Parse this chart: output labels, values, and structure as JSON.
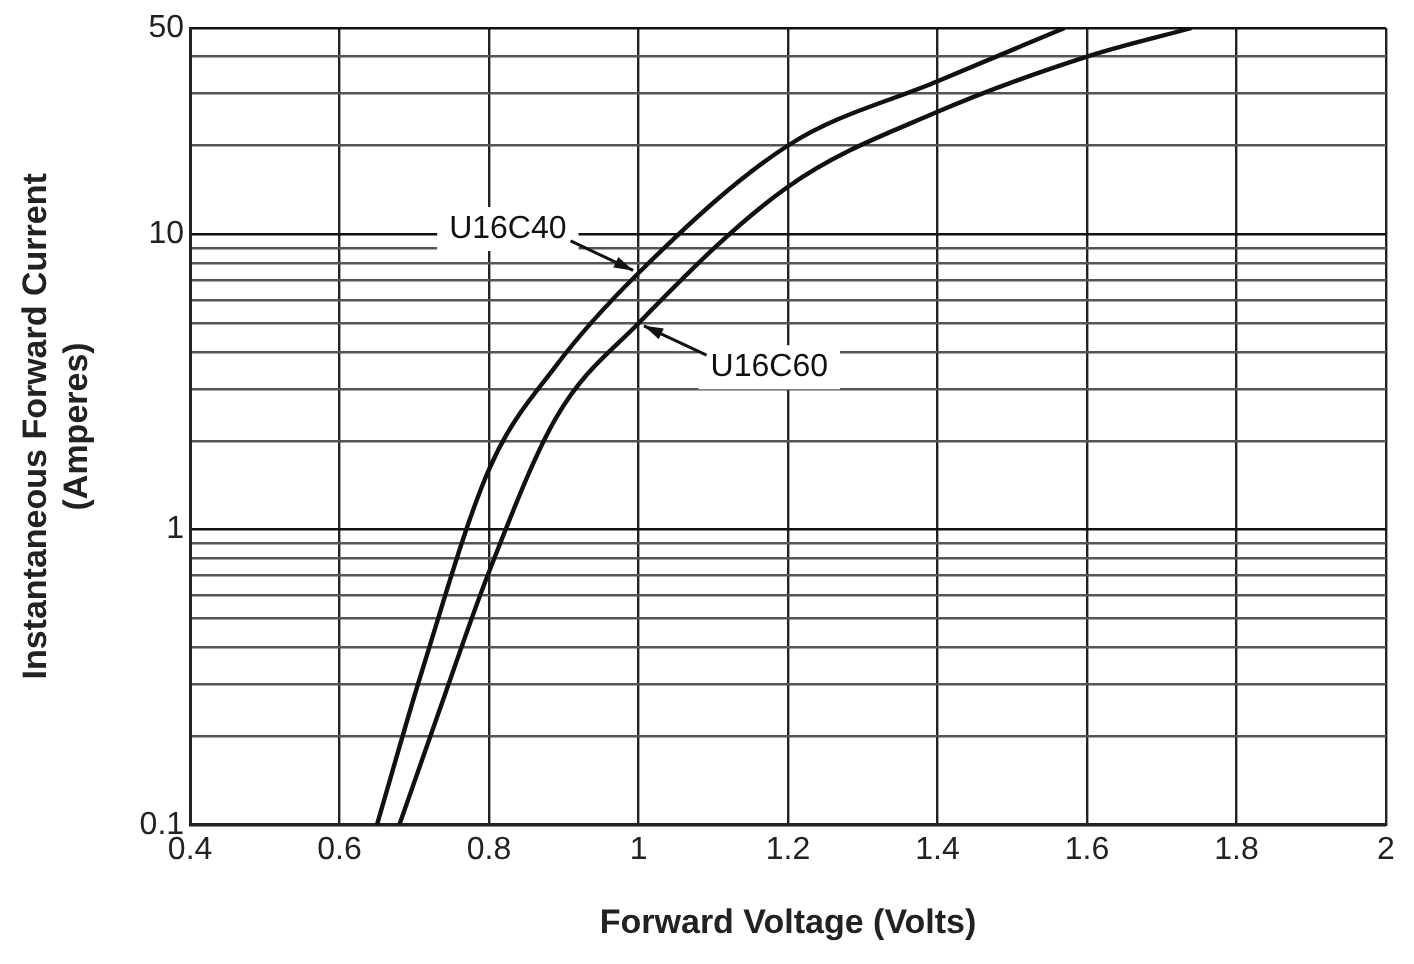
{
  "chart_data": {
    "type": "line",
    "xlabel": "Forward Voltage (Volts)",
    "ylabel": "Instantaneous Forward Current (Amperes)",
    "log": "y",
    "grid": true,
    "legend": false,
    "marker": "none",
    "line_style": "solid",
    "xlim": [
      0.4,
      2.0
    ],
    "xticks": [
      0.4,
      0.6,
      0.8,
      1,
      1.2,
      1.4,
      1.6,
      1.8,
      2.0
    ],
    "ylim": [
      0.1,
      50
    ],
    "yticks": [
      0.1,
      {
        "value": 0.2,
        "label": null
      },
      {
        "value": 0.3,
        "label": null
      },
      {
        "value": 0.4,
        "label": null
      },
      {
        "value": 0.5,
        "label": null
      },
      {
        "value": 0.6,
        "label": null
      },
      {
        "value": 0.7,
        "label": null
      },
      {
        "value": 0.8,
        "label": null
      },
      {
        "value": 0.9,
        "label": null
      },
      1,
      {
        "value": 2,
        "label": null
      },
      {
        "value": 3,
        "label": null
      },
      {
        "value": 4,
        "label": null
      },
      {
        "value": 5,
        "label": null
      },
      {
        "value": 6,
        "label": null
      },
      {
        "value": 7,
        "label": null
      },
      {
        "value": 8,
        "label": null
      },
      {
        "value": 9,
        "label": null
      },
      10,
      {
        "value": 20,
        "label": null
      },
      {
        "value": 30,
        "label": null
      },
      {
        "value": 40,
        "label": null
      },
      50
    ],
    "series": [
      {
        "name": "U16C40",
        "color": "#111111",
        "x": [
          0.65,
          0.71,
          0.8,
          0.89,
          1.0,
          1.2,
          1.4,
          1.57
        ],
        "values": [
          0.1,
          0.33,
          1.6,
          3.6,
          7.4,
          20,
          33,
          50
        ]
      },
      {
        "name": "U16C60",
        "color": "#111111",
        "x": [
          0.68,
          0.73,
          0.8,
          0.89,
          1.0,
          1.2,
          1.4,
          1.6,
          1.74
        ],
        "values": [
          0.1,
          0.23,
          0.72,
          2.4,
          5,
          14.5,
          26,
          40,
          50
        ]
      }
    ]
  }
}
